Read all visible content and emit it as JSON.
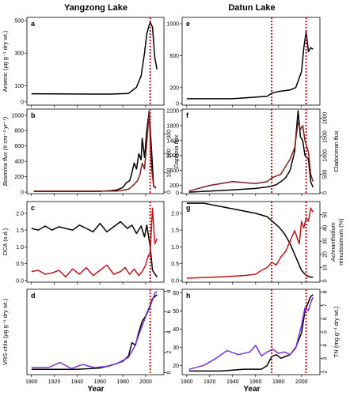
{
  "figure": {
    "columns": [
      {
        "id": "left",
        "title": "Yangzong Lake"
      },
      {
        "id": "right",
        "title": "Datun Lake"
      }
    ],
    "x_label": "Year",
    "x_ticks": [
      1900,
      1920,
      1940,
      1960,
      1980,
      2000
    ],
    "x_range": [
      1896,
      2016
    ],
    "colors": {
      "black": "#000000",
      "red": "#c0141a",
      "maroon": "#7a1e1e",
      "purple": "#7b30d9",
      "vline": "#c0141a"
    },
    "event_lines": {
      "left": 2004,
      "right_a": 1974,
      "right_b": 2004
    }
  },
  "chart_data": [
    {
      "id": "a",
      "column": "left",
      "row": 0,
      "type": "line",
      "letter": "a",
      "ylabel_left": "Arsenic (μg g⁻¹ dry wt.)",
      "ylim_left": [
        -20,
        520
      ],
      "yticks_left": [
        0,
        100,
        300,
        500
      ],
      "series": [
        {
          "axis": "left",
          "color": "black",
          "x": [
            1900,
            1950,
            1970,
            1985,
            1992,
            1996,
            1999,
            2001,
            2003,
            2004,
            2006,
            2008,
            2010
          ],
          "y": [
            50,
            48,
            48,
            52,
            90,
            160,
            300,
            420,
            470,
            490,
            460,
            270,
            200
          ]
        }
      ]
    },
    {
      "id": "b",
      "column": "left",
      "row": 1,
      "type": "line",
      "letter": "b",
      "ylabel_left": "Bosmina flux (# cm⁻² yr⁻¹)",
      "ylabel_right": "Daphnia flux",
      "ylim_left": [
        -20,
        1080
      ],
      "yticks_left": [
        0,
        200,
        400,
        600,
        800,
        1000
      ],
      "ylim_right": [
        -8,
        430
      ],
      "yticks_right": [
        0,
        100,
        200,
        300
      ],
      "series": [
        {
          "axis": "left",
          "color": "black",
          "x": [
            1902,
            1940,
            1960,
            1970,
            1975,
            1980,
            1983,
            1986,
            1988,
            1990,
            1992,
            1994,
            1996,
            1997,
            1999,
            2001,
            2003,
            2005,
            2007,
            2009
          ],
          "y": [
            10,
            10,
            10,
            20,
            30,
            60,
            120,
            150,
            250,
            380,
            300,
            500,
            420,
            700,
            450,
            800,
            1050,
            600,
            80,
            60
          ]
        },
        {
          "axis": "right",
          "color": "maroon",
          "x": [
            1902,
            1975,
            1985,
            1990,
            1993,
            1995,
            1997,
            1999,
            2001,
            2003,
            2005,
            2007,
            2009
          ],
          "y": [
            5,
            5,
            15,
            40,
            60,
            90,
            150,
            120,
            260,
            410,
            140,
            30,
            20
          ]
        }
      ]
    },
    {
      "id": "c",
      "column": "left",
      "row": 2,
      "type": "line",
      "letter": "c",
      "ylabel_left": "DCA (s.d.)",
      "ylim_left": [
        -0.05,
        2.35
      ],
      "yticks_left": [
        0.0,
        0.5,
        1.0,
        1.5,
        2.0
      ],
      "ylim_right": [
        -1,
        60
      ],
      "series": [
        {
          "axis": "left",
          "color": "black",
          "x": [
            1900,
            1906,
            1912,
            1918,
            1924,
            1930,
            1936,
            1942,
            1948,
            1954,
            1960,
            1966,
            1972,
            1978,
            1984,
            1988,
            1992,
            1996,
            1999,
            2001,
            2004,
            2006,
            2008,
            2010
          ],
          "y": [
            1.55,
            1.5,
            1.62,
            1.5,
            1.6,
            1.55,
            1.5,
            1.65,
            1.55,
            1.45,
            1.7,
            1.45,
            1.6,
            1.75,
            1.55,
            1.65,
            1.4,
            1.62,
            1.3,
            1.65,
            1.0,
            0.3,
            0.2,
            0.1
          ]
        },
        {
          "axis": "right",
          "color": "red",
          "x": [
            1900,
            1906,
            1912,
            1918,
            1924,
            1930,
            1936,
            1942,
            1948,
            1954,
            1960,
            1966,
            1972,
            1978,
            1982,
            1986,
            1990,
            1994,
            1997,
            2000,
            2002,
            2004,
            2006,
            2008,
            2010
          ],
          "y": [
            7,
            8,
            5,
            6,
            8,
            3,
            9,
            5,
            10,
            4,
            8,
            12,
            5,
            7,
            10,
            5,
            9,
            4,
            7,
            12,
            18,
            22,
            55,
            28,
            32
          ]
        }
      ]
    },
    {
      "id": "d",
      "column": "left",
      "row": 3,
      "type": "line",
      "letter": "d",
      "ylabel_left": "VRS-chla (μg g⁻¹ dry wt.)",
      "ylim_left": [
        -2,
        62
      ],
      "ylim_right": [
        -0.2,
        8.2
      ],
      "yticks_right": [
        0,
        2,
        4,
        6,
        8
      ],
      "series": [
        {
          "axis": "left",
          "color": "black",
          "x": [
            1900,
            1940,
            1960,
            1970,
            1980,
            1985,
            1988,
            1991,
            1994,
            1997,
            2000,
            2003,
            2006,
            2010
          ],
          "y": [
            2,
            2,
            3,
            5,
            8,
            12,
            22,
            20,
            30,
            38,
            42,
            48,
            55,
            58
          ]
        },
        {
          "axis": "right",
          "color": "purple",
          "x": [
            1900,
            1915,
            1925,
            1935,
            1945,
            1955,
            1965,
            1975,
            1985,
            1990,
            1995,
            2000,
            2004,
            2008,
            2010
          ],
          "y": [
            0.5,
            0.5,
            1.0,
            0.4,
            0.8,
            0.5,
            0.6,
            0.9,
            1.5,
            2.5,
            4.0,
            5.5,
            6.5,
            7.8,
            8.0
          ]
        }
      ]
    },
    {
      "id": "e",
      "column": "right",
      "row": 0,
      "type": "line",
      "letter": "e",
      "ylim_left": [
        -20,
        1080
      ],
      "yticks_left": [
        0,
        200,
        600,
        1000
      ],
      "series": [
        {
          "axis": "left",
          "color": "black",
          "x": [
            1900,
            1920,
            1940,
            1950,
            1960,
            1970,
            1974,
            1980,
            1985,
            1990,
            1995,
            2000,
            2002,
            2004,
            2006,
            2008,
            2010
          ],
          "y": [
            60,
            60,
            60,
            70,
            80,
            90,
            130,
            150,
            160,
            170,
            200,
            400,
            700,
            900,
            650,
            700,
            680
          ]
        }
      ]
    },
    {
      "id": "f",
      "column": "right",
      "row": 1,
      "type": "line",
      "letter": "f",
      "ylabel_right": "Cladoceran flux",
      "ylim_left": [
        -20,
        2240
      ],
      "yticks_left": [
        0,
        200,
        600,
        1000,
        1400,
        1800,
        2200
      ],
      "ylim_right": [
        -20,
        2240
      ],
      "yticks_right": [
        0,
        500,
        1000,
        1500,
        2000
      ],
      "series": [
        {
          "axis": "left",
          "color": "black",
          "x": [
            1902,
            1920,
            1940,
            1960,
            1970,
            1974,
            1978,
            1982,
            1986,
            1990,
            1994,
            1997,
            1999,
            2001,
            2003,
            2006,
            2008,
            2010
          ],
          "y": [
            20,
            50,
            80,
            120,
            160,
            180,
            220,
            300,
            400,
            600,
            1100,
            2200,
            1500,
            1400,
            1000,
            900,
            300,
            150
          ]
        },
        {
          "axis": "right",
          "color": "maroon",
          "x": [
            1902,
            1920,
            1940,
            1960,
            1970,
            1974,
            1978,
            1982,
            1986,
            1990,
            1994,
            1997,
            1999,
            2001,
            2003,
            2006,
            2008,
            2010
          ],
          "y": [
            50,
            200,
            300,
            250,
            300,
            400,
            450,
            500,
            700,
            900,
            1200,
            1900,
            1700,
            1800,
            1400,
            1100,
            500,
            300
          ]
        }
      ]
    },
    {
      "id": "g",
      "column": "right",
      "row": 2,
      "type": "line",
      "letter": "g",
      "ylabel_right_lines": [
        "Achnanthidium",
        "minutissimum (%)"
      ],
      "ylim_left": [
        -0.05,
        2.35
      ],
      "yticks_left": [
        0.0,
        0.5,
        1.0,
        1.5,
        2.0
      ],
      "ylim_right": [
        -1,
        60
      ],
      "yticks_right": [
        0,
        10,
        20,
        30,
        40,
        50
      ],
      "series": [
        {
          "axis": "left",
          "color": "black",
          "x": [
            1900,
            1915,
            1930,
            1945,
            1960,
            1970,
            1975,
            1980,
            1985,
            1990,
            1995,
            2000,
            2004,
            2008,
            2010
          ],
          "y": [
            2.3,
            2.3,
            2.2,
            2.1,
            2.0,
            1.9,
            1.75,
            1.6,
            1.4,
            1.1,
            0.7,
            0.3,
            0.15,
            0.1,
            0.1
          ]
        },
        {
          "axis": "right",
          "color": "red",
          "x": [
            1900,
            1930,
            1950,
            1960,
            1965,
            1970,
            1974,
            1978,
            1982,
            1986,
            1990,
            1994,
            1998,
            2000,
            2002,
            2004,
            2006,
            2008,
            2010
          ],
          "y": [
            2,
            3,
            4,
            5,
            8,
            10,
            14,
            12,
            18,
            22,
            30,
            38,
            28,
            45,
            40,
            48,
            45,
            55,
            52
          ]
        }
      ]
    },
    {
      "id": "h",
      "column": "right",
      "row": 3,
      "type": "line",
      "letter": "h",
      "ylabel_right": "TN (mg g⁻¹ dry wt.)",
      "ylim_left": [
        15,
        62
      ],
      "yticks_left": [
        20,
        30,
        40,
        50,
        60
      ],
      "ylim_right": [
        1.8,
        8.2
      ],
      "yticks_right": [
        2,
        3,
        4,
        5,
        6,
        7,
        8
      ],
      "series": [
        {
          "axis": "left",
          "color": "black",
          "x": [
            1902,
            1930,
            1950,
            1965,
            1970,
            1974,
            1978,
            1982,
            1986,
            1990,
            1995,
            2000,
            2003,
            2006,
            2008,
            2010
          ],
          "y": [
            17,
            17,
            18,
            18,
            20,
            25,
            26,
            24,
            25,
            26,
            30,
            38,
            50,
            55,
            58,
            59
          ]
        },
        {
          "axis": "right",
          "color": "purple",
          "x": [
            1902,
            1915,
            1925,
            1935,
            1945,
            1955,
            1960,
            1965,
            1970,
            1975,
            1980,
            1985,
            1990,
            1995,
            2000,
            2003,
            2006,
            2008,
            2010
          ],
          "y": [
            2.2,
            2.5,
            3.0,
            3.6,
            3.3,
            3.5,
            4.0,
            3.2,
            3.5,
            3.7,
            3.4,
            3.5,
            3.3,
            3.8,
            5.5,
            6.8,
            6.6,
            7.2,
            7.6
          ]
        }
      ]
    }
  ]
}
